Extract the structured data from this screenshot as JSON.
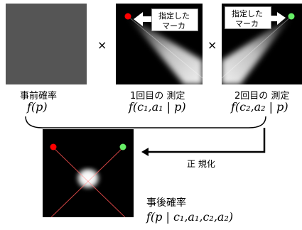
{
  "panels": {
    "prior": {
      "title": "事前確率",
      "formula": "f(p)"
    },
    "measure1": {
      "title": "1回目の 測定",
      "formula": "f(c₁,a₁ | p)",
      "callout_line1": "指定した",
      "callout_line2": "マーカ",
      "marker_color": "#ff0000"
    },
    "measure2": {
      "title": "2回目の 測定",
      "formula": "f(c₂,a₂ | p)",
      "callout_line1": "指定した",
      "callout_line2": "マーカ",
      "marker_color": "#66ee66"
    },
    "posterior": {
      "title": "事後確率",
      "formula": "f(p | c₁,a₁,c₂,a₂)",
      "marker_left_color": "#ff0000",
      "marker_right_color": "#66ee66"
    }
  },
  "operators": {
    "times1": "×",
    "times2": "×"
  },
  "arrow_label": "正 規化",
  "colors": {
    "prior_fill": "#555555",
    "panel_black": "#000000",
    "marker_red": "#ff0000",
    "marker_green": "#66ee66"
  }
}
